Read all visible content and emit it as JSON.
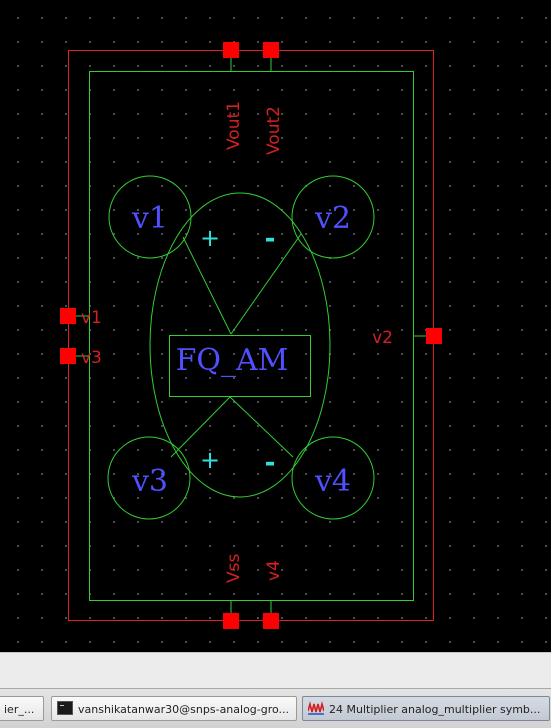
{
  "schematic": {
    "symbol_name": "FQ_AM",
    "top_pins": [
      "Vout1",
      "Vout2"
    ],
    "bottom_pins": [
      "Vss",
      "v4"
    ],
    "left_pins": [
      "v1",
      "v3"
    ],
    "right_pins": [
      "v2"
    ],
    "circle_labels": [
      "v1",
      "v2",
      "v3",
      "v4"
    ],
    "polarity": [
      "+",
      "-",
      "+",
      "-"
    ],
    "colors": {
      "background": "#000000",
      "boundary": "#e02020",
      "body": "#33cc33",
      "pin": "#ff0000",
      "pin_label": "#d42020",
      "text": "#5050ff",
      "polarity": "#33e0e0"
    }
  },
  "taskbar": {
    "items": [
      {
        "label": "ier_..."
      },
      {
        "label": "vanshikatanwar30@snps-analog-gro..."
      },
      {
        "label": "24 Multiplier analog_multiplier symb..."
      }
    ]
  }
}
